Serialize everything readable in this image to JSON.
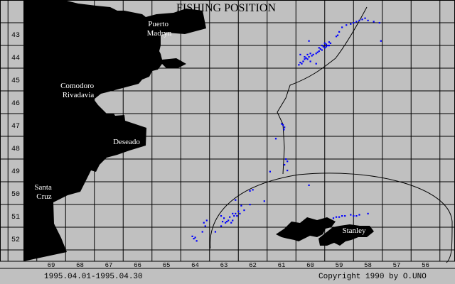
{
  "title": "FISHING POSITION",
  "date_range": "1995.04.01-1995.04.30",
  "copyright": "Copyright 1990 by O.UNO",
  "colors": {
    "background": "#c0c0c0",
    "land": "#000000",
    "grid": "#000000",
    "points": "#0000ff",
    "city_label": "#ffffff"
  },
  "map": {
    "longitude_labels": [
      "69",
      "68",
      "67",
      "66",
      "65",
      "64",
      "63",
      "62",
      "61",
      "60",
      "59",
      "58",
      "57",
      "56"
    ],
    "latitude_labels": [
      "43",
      "44",
      "45",
      "46",
      "47",
      "48",
      "49",
      "50",
      "51",
      "52"
    ],
    "cities": [
      {
        "name": "puerto-madryn",
        "lines": [
          "Puerto",
          "Madryn"
        ]
      },
      {
        "name": "comodoro-rivadavia",
        "lines": [
          "Comodoro",
          "Rivadavia"
        ]
      },
      {
        "name": "deseado",
        "lines": [
          "Deseado"
        ]
      },
      {
        "name": "santa-cruz",
        "lines": [
          "Santa",
          "Cruz"
        ]
      },
      {
        "name": "stanley",
        "lines": [
          "Stanley"
        ]
      }
    ],
    "fishing_positions": [
      [
        58.1,
        42.3
      ],
      [
        58.2,
        42.35
      ],
      [
        58.3,
        42.4
      ],
      [
        58.4,
        42.45
      ],
      [
        58.5,
        42.5
      ],
      [
        58.6,
        42.55
      ],
      [
        58.75,
        42.6
      ],
      [
        58.9,
        42.7
      ],
      [
        57.6,
        42.5
      ],
      [
        57.8,
        42.45
      ],
      [
        58.0,
        42.4
      ],
      [
        57.55,
        43.3
      ],
      [
        59.0,
        42.9
      ],
      [
        59.05,
        43.05
      ],
      [
        59.1,
        43.1
      ],
      [
        59.3,
        43.4
      ],
      [
        59.35,
        43.35
      ],
      [
        59.4,
        43.5
      ],
      [
        59.45,
        43.45
      ],
      [
        59.5,
        43.6
      ],
      [
        59.55,
        43.55
      ],
      [
        59.6,
        43.7
      ],
      [
        59.65,
        43.65
      ],
      [
        59.7,
        43.75
      ],
      [
        59.75,
        43.8
      ],
      [
        59.8,
        43.85
      ],
      [
        59.9,
        43.9
      ],
      [
        59.95,
        43.95
      ],
      [
        60.0,
        43.85
      ],
      [
        60.05,
        44.0
      ],
      [
        60.1,
        43.9
      ],
      [
        60.15,
        44.05
      ],
      [
        60.2,
        44.1
      ],
      [
        60.25,
        44.2
      ],
      [
        60.3,
        44.3
      ],
      [
        60.35,
        44.25
      ],
      [
        60.4,
        44.35
      ],
      [
        60.1,
        44.1
      ],
      [
        60.0,
        44.2
      ],
      [
        60.05,
        43.3
      ],
      [
        59.8,
        44.3
      ],
      [
        60.35,
        43.9
      ],
      [
        60.2,
        44.0
      ],
      [
        59.6,
        43.5
      ],
      [
        59.5,
        43.4
      ],
      [
        59.7,
        43.6
      ],
      [
        59.45,
        43.55
      ],
      [
        59.35,
        43.5
      ],
      [
        60.95,
        47.0
      ],
      [
        60.9,
        47.1
      ],
      [
        60.92,
        47.2
      ],
      [
        61.0,
        46.95
      ],
      [
        61.2,
        47.6
      ],
      [
        60.8,
        48.6
      ],
      [
        60.85,
        48.5
      ],
      [
        60.9,
        48.75
      ],
      [
        60.8,
        49.0
      ],
      [
        61.4,
        49.05
      ],
      [
        60.05,
        49.65
      ],
      [
        61.6,
        50.35
      ],
      [
        62.0,
        49.85
      ],
      [
        62.1,
        49.9
      ],
      [
        62.1,
        50.5
      ],
      [
        62.3,
        50.75
      ],
      [
        62.4,
        50.55
      ],
      [
        62.45,
        50.9
      ],
      [
        62.5,
        50.8
      ],
      [
        62.6,
        50.9
      ],
      [
        62.55,
        51.0
      ],
      [
        62.65,
        51.0
      ],
      [
        62.7,
        51.2
      ],
      [
        62.8,
        51.05
      ],
      [
        62.85,
        51.2
      ],
      [
        62.9,
        51.25
      ],
      [
        62.95,
        51.3
      ],
      [
        63.05,
        51.25
      ],
      [
        63.1,
        51.45
      ],
      [
        62.75,
        51.3
      ],
      [
        62.7,
        50.9
      ],
      [
        63.0,
        51.1
      ],
      [
        63.1,
        51.0
      ],
      [
        62.6,
        50.3
      ],
      [
        63.6,
        51.2
      ],
      [
        63.7,
        51.3
      ],
      [
        63.65,
        51.45
      ],
      [
        63.75,
        51.7
      ],
      [
        63.3,
        51.7
      ],
      [
        64.0,
        51.95
      ],
      [
        64.05,
        52.0
      ],
      [
        64.1,
        51.9
      ],
      [
        63.95,
        52.1
      ],
      [
        59.2,
        51.1
      ],
      [
        59.1,
        51.05
      ],
      [
        59.0,
        51.05
      ],
      [
        58.9,
        51.0
      ],
      [
        58.8,
        51.0
      ],
      [
        58.6,
        50.95
      ],
      [
        58.5,
        51.0
      ],
      [
        58.4,
        51.0
      ],
      [
        58.3,
        50.95
      ],
      [
        58.0,
        50.9
      ]
    ]
  }
}
